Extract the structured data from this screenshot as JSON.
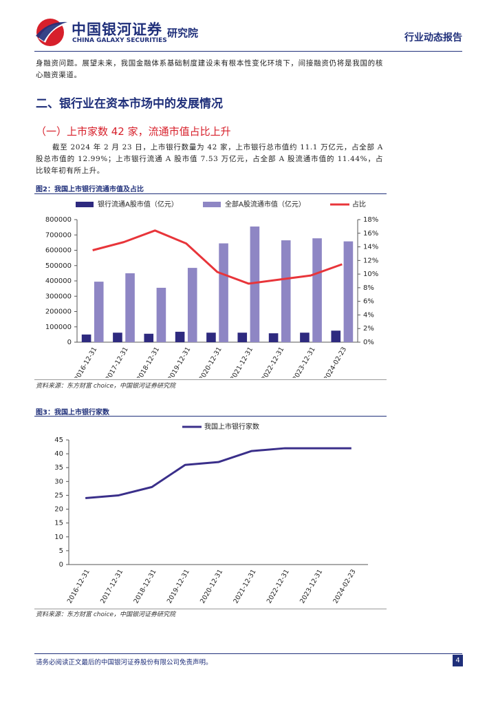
{
  "header": {
    "logo_cn": "中国银河证券",
    "logo_en": "CHINA GALAXY SECURITIES",
    "institute": "研究院",
    "report_type": "行业动态报告"
  },
  "intro_text": "身融资问题。展望未来，我国金融体系基础制度建设未有根本性变化环境下，间接融资仍将是我国的核心融资渠道。",
  "section_heading": "二、银行业在资本市场中的发展情况",
  "subsection_heading": "（一）上市家数 42 家，流通市值占比上升",
  "paragraph": "截至 2024 年 2 月 23 日，上市银行数量为 42 家，上市银行总市值约 11.1 万亿元，占全部 A 股总市值的 12.99%；上市银行流通 A 股市值 7.53 万亿元，占全部 A 股流通市值的 11.44%，占比较年初有所上升。",
  "figures": [
    {
      "caption": "图2：我国上市银行流通市值及占比",
      "source": "资料来源：东方财富 choice，中国银河证券研究院"
    },
    {
      "caption": "图3：我国上市银行家数",
      "source": "资料来源：东方财富 choice，中国银河证券研究院"
    }
  ],
  "chart_data": [
    {
      "type": "bar",
      "categories": [
        "2016-12-31",
        "2017-12-31",
        "2018-12-31",
        "2019-12-31",
        "2020-12-31",
        "2021-12-31",
        "2022-12-31",
        "2023-12-31",
        "2024-02-23"
      ],
      "series": [
        {
          "name": "银行流通A股市值（亿元）",
          "color": "#2e2a7f",
          "values": [
            50000,
            62000,
            55000,
            68000,
            62000,
            62000,
            58000,
            62000,
            75300
          ]
        },
        {
          "name": "全部A股流通市值（亿元）",
          "color": "#8e86c4",
          "values": [
            395000,
            450000,
            355000,
            485000,
            645000,
            755000,
            665000,
            678000,
            658000
          ]
        },
        {
          "name": "占比",
          "color": "#e8353a",
          "type": "line",
          "axis": "y2",
          "values": [
            13.5,
            14.7,
            16.4,
            14.5,
            10.3,
            8.6,
            9.2,
            9.8,
            11.44
          ]
        }
      ],
      "ylim": [
        0,
        800000
      ],
      "yticks": [
        0,
        100000,
        200000,
        300000,
        400000,
        500000,
        600000,
        700000,
        800000
      ],
      "y2lim": [
        0,
        18
      ],
      "y2ticks": [
        {
          "value": 0,
          "label": "0%"
        },
        {
          "value": 2,
          "label": "2%"
        },
        {
          "value": 4,
          "label": "4%"
        },
        {
          "value": 6,
          "label": "6%"
        },
        {
          "value": 8,
          "label": "8%"
        },
        {
          "value": 10,
          "label": "10%"
        },
        {
          "value": 12,
          "label": "12%"
        },
        {
          "value": 14,
          "label": "14%"
        },
        {
          "value": 16,
          "label": "16%"
        },
        {
          "value": 18,
          "label": "18%"
        }
      ]
    },
    {
      "type": "line",
      "categories": [
        "2016-12-31",
        "2017-12-31",
        "2018-12-31",
        "2019-12-31",
        "2020-12-31",
        "2021-12-31",
        "2022-12-31",
        "2023-12-31",
        "2024-02-23"
      ],
      "series": [
        {
          "name": "我国上市银行家数",
          "color": "#3a2f8a",
          "values": [
            24,
            25,
            28,
            36,
            37,
            41,
            42,
            42,
            42
          ]
        }
      ],
      "ylim": [
        0,
        45
      ],
      "yticks": [
        0,
        5,
        10,
        15,
        20,
        25,
        30,
        35,
        40,
        45
      ]
    }
  ],
  "footer": {
    "disclaimer": "请务必阅读正文最后的中国银河证券股份有限公司免责声明。",
    "page_number": "4"
  }
}
